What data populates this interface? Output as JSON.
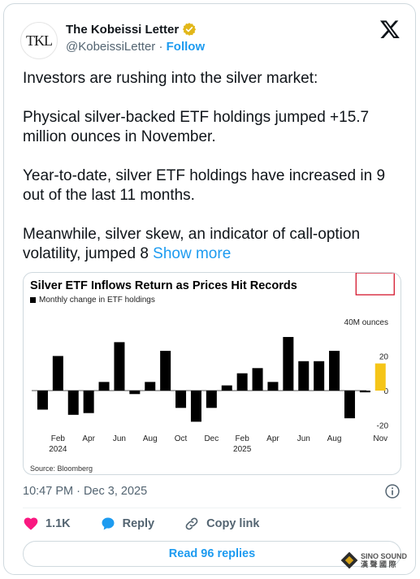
{
  "author": {
    "avatar_text": "TKL",
    "name": "The Kobeissi Letter",
    "handle": "@KobeissiLetter",
    "separator": "·",
    "follow_label": "Follow"
  },
  "tweet": {
    "paragraphs": [
      "Investors are rushing into the silver market:",
      "Physical silver-backed ETF holdings jumped +15.7 million ounces in November.",
      "Year-to-date, silver ETF holdings have increased in 9 out of the last 11 months."
    ],
    "last_paragraph": "Meanwhile, silver skew, an indicator of call-option volatility, jumped 8",
    "show_more_label": "Show more"
  },
  "chart_data": {
    "type": "bar",
    "title": "Silver ETF Inflows Return as Prices Hit Records",
    "legend": "Monthly change in ETF holdings",
    "source": "Source: Bloomberg",
    "y_unit_label": "40M ounces",
    "y_ticks": [
      "40M ounces",
      "20",
      "0",
      "-20"
    ],
    "ylim": [
      -25,
      40
    ],
    "x_tick_labels": [
      "Feb",
      "Apr",
      "Jun",
      "Aug",
      "Oct",
      "Dec",
      "Feb",
      "Apr",
      "Jun",
      "Aug",
      "Nov"
    ],
    "x_year_labels": [
      "2024",
      "2025"
    ],
    "categories": [
      "2024-01",
      "2024-02",
      "2024-03",
      "2024-04",
      "2024-05",
      "2024-06",
      "2024-07",
      "2024-08",
      "2024-09",
      "2024-10",
      "2024-11",
      "2024-12",
      "2025-01",
      "2025-02",
      "2025-03",
      "2025-04",
      "2025-05",
      "2025-06",
      "2025-07",
      "2025-08",
      "2025-09",
      "2025-10",
      "2025-11"
    ],
    "values": [
      -11,
      20,
      -14,
      -13,
      5,
      28,
      -2,
      5,
      23,
      -10,
      -18,
      -10,
      3,
      10,
      13,
      5,
      31,
      17,
      17,
      23,
      -16,
      -1,
      15.7
    ],
    "highlight": {
      "index": 22,
      "date": "2025/11/28",
      "value_label": "15.7M",
      "color": "#f5c518"
    },
    "bar_color": "#000000",
    "grid": false
  },
  "meta": {
    "timestamp": "10:47 PM · Dec 3, 2025"
  },
  "actions": {
    "likes": "1.1K",
    "reply_label": "Reply",
    "copy_link_label": "Copy link",
    "read_replies_label": "Read 96 replies"
  },
  "colors": {
    "accent": "#1d9bf0",
    "like": "#f91880",
    "verified": "#e2b719"
  },
  "watermark": {
    "line1": "SINO SOUND",
    "line2": "漢 聲 國 際"
  }
}
